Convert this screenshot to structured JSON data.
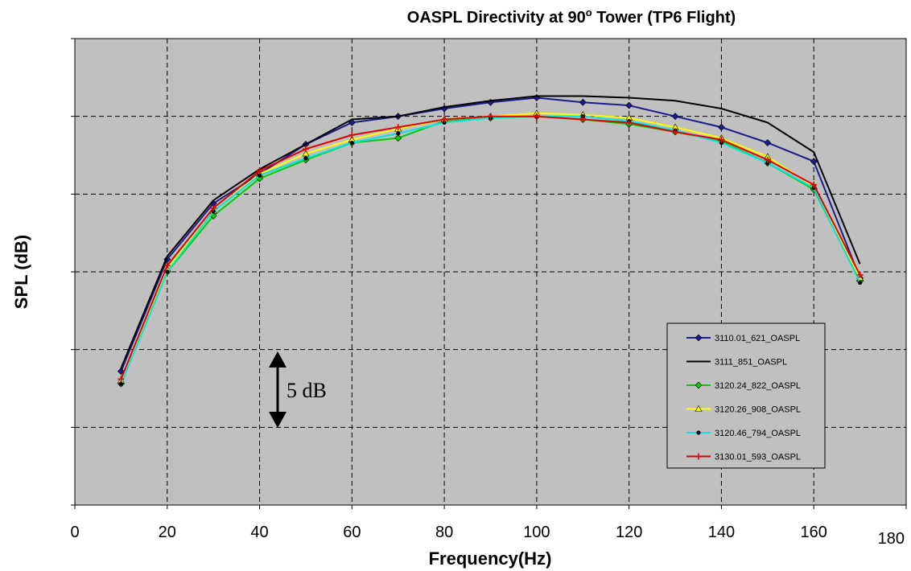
{
  "chart_data": {
    "type": "line",
    "title": "OASPL Directivity at 90",
    "title_superscript": "o",
    "title_suffix": " Tower (TP6 Flight)",
    "xlabel": "Frequency(Hz)",
    "ylabel": "SPL (dB)",
    "xlim": [
      0,
      180
    ],
    "ylim": [
      0,
      30
    ],
    "y_tick_labels_shown": false,
    "grid": true,
    "legend_position": "lower-right",
    "x_ticks": [
      "0",
      "20",
      "40",
      "60",
      "80",
      "100",
      "120",
      "140",
      "160",
      "180"
    ],
    "annotation": "5 dB",
    "x": [
      10,
      20,
      30,
      40,
      50,
      60,
      70,
      80,
      90,
      100,
      110,
      120,
      130,
      140,
      150,
      160,
      170
    ],
    "series": [
      {
        "name": "3110.01_621_OASPL",
        "color": "#1c1c8c",
        "marker": "diamond",
        "values": [
          8.6,
          15.8,
          19.4,
          21.3,
          23.2,
          24.6,
          25.0,
          25.5,
          25.9,
          26.2,
          25.9,
          25.7,
          25.0,
          24.3,
          23.3,
          22.1,
          14.6
        ]
      },
      {
        "name": "3111_851_OASPL",
        "color": "#000000",
        "marker": "none",
        "values": [
          8.8,
          16.0,
          19.6,
          21.6,
          23.2,
          24.8,
          25.0,
          25.6,
          26.0,
          26.3,
          26.3,
          26.2,
          26.0,
          25.5,
          24.6,
          22.7,
          15.5
        ]
      },
      {
        "name": "3120.24_822_OASPL",
        "color": "#00cc00",
        "marker": "diamond",
        "values": [
          7.8,
          15.0,
          18.6,
          21.0,
          22.2,
          23.3,
          23.6,
          24.7,
          24.9,
          25.0,
          24.8,
          24.5,
          24.0,
          23.4,
          22.0,
          20.3,
          14.4
        ]
      },
      {
        "name": "3120.26_908_OASPL",
        "color": "#ffff00",
        "marker": "triangle",
        "values": [
          8.0,
          15.2,
          18.9,
          21.3,
          22.6,
          23.5,
          24.2,
          24.8,
          25.0,
          25.2,
          25.1,
          24.9,
          24.3,
          23.6,
          22.4,
          20.5,
          14.6
        ]
      },
      {
        "name": "3120.46_794_OASPL",
        "color": "#00e5e5",
        "marker": "circle",
        "values": [
          7.8,
          15.0,
          18.9,
          21.2,
          22.3,
          23.3,
          23.9,
          24.6,
          24.9,
          25.0,
          25.0,
          24.7,
          24.1,
          23.3,
          22.0,
          20.4,
          14.3
        ]
      },
      {
        "name": "3130.01_593_OASPL",
        "color": "#e00000",
        "marker": "plus",
        "values": [
          8.1,
          15.4,
          19.1,
          21.5,
          22.9,
          23.8,
          24.3,
          24.8,
          25.0,
          25.0,
          24.8,
          24.6,
          24.0,
          23.5,
          22.2,
          20.6,
          14.8
        ]
      }
    ]
  }
}
